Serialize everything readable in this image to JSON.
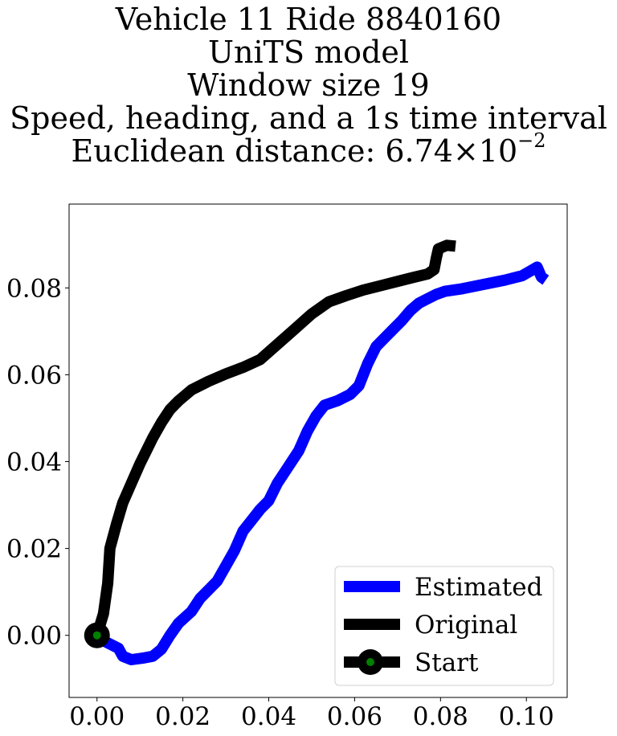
{
  "chart_data": {
    "type": "line",
    "title_lines": [
      "Vehicle 11 Ride 8840160",
      "UniTS model",
      "Window size 19",
      "Speed, heading, and a 1s time interval"
    ],
    "distance_label": "Euclidean distance: 6.74",
    "distance_times": "×",
    "distance_base": "10",
    "distance_exp": "−2",
    "xlim": [
      -0.0065,
      0.1095
    ],
    "ylim": [
      -0.0143,
      0.0993
    ],
    "x_ticks": [
      0.0,
      0.02,
      0.04,
      0.06,
      0.08,
      0.1
    ],
    "x_tick_labels": [
      "0.00",
      "0.02",
      "0.04",
      "0.06",
      "0.08",
      "0.10"
    ],
    "y_ticks": [
      0.0,
      0.02,
      0.04,
      0.06,
      0.08
    ],
    "y_tick_labels": [
      "0.00",
      "0.02",
      "0.04",
      "0.06",
      "0.08"
    ],
    "grid": false,
    "legend": {
      "placement": "lower-right",
      "entries": [
        "Estimated",
        "Original",
        "Start"
      ]
    },
    "series": [
      {
        "name": "Estimated",
        "color": "#0000ff",
        "points": [
          [
            0.0,
            0.0
          ],
          [
            0.002,
            -0.0015
          ],
          [
            0.005,
            -0.003
          ],
          [
            0.006,
            -0.0048
          ],
          [
            0.008,
            -0.0056
          ],
          [
            0.011,
            -0.0052
          ],
          [
            0.013,
            -0.0048
          ],
          [
            0.015,
            -0.0032
          ],
          [
            0.017,
            0.0
          ],
          [
            0.019,
            0.0028
          ],
          [
            0.022,
            0.0055
          ],
          [
            0.024,
            0.0085
          ],
          [
            0.026,
            0.0105
          ],
          [
            0.028,
            0.0125
          ],
          [
            0.03,
            0.016
          ],
          [
            0.032,
            0.0195
          ],
          [
            0.034,
            0.024
          ],
          [
            0.036,
            0.0265
          ],
          [
            0.038,
            0.029
          ],
          [
            0.04,
            0.031
          ],
          [
            0.042,
            0.035
          ],
          [
            0.044,
            0.038
          ],
          [
            0.047,
            0.0425
          ],
          [
            0.049,
            0.047
          ],
          [
            0.051,
            0.0505
          ],
          [
            0.053,
            0.053
          ],
          [
            0.056,
            0.054
          ],
          [
            0.059,
            0.0555
          ],
          [
            0.061,
            0.0575
          ],
          [
            0.063,
            0.0625
          ],
          [
            0.065,
            0.0665
          ],
          [
            0.067,
            0.0685
          ],
          [
            0.069,
            0.0705
          ],
          [
            0.071,
            0.0725
          ],
          [
            0.073,
            0.0748
          ],
          [
            0.075,
            0.0765
          ],
          [
            0.077,
            0.0775
          ],
          [
            0.079,
            0.0785
          ],
          [
            0.081,
            0.0792
          ],
          [
            0.085,
            0.0798
          ],
          [
            0.09,
            0.0808
          ],
          [
            0.095,
            0.0818
          ],
          [
            0.099,
            0.0828
          ],
          [
            0.1015,
            0.0842
          ],
          [
            0.1025,
            0.0848
          ],
          [
            0.1035,
            0.0825
          ],
          [
            0.1045,
            0.0818
          ]
        ]
      },
      {
        "name": "Original",
        "color": "#000000",
        "points": [
          [
            0.0,
            0.0
          ],
          [
            0.0015,
            0.005
          ],
          [
            0.0025,
            0.012
          ],
          [
            0.003,
            0.02
          ],
          [
            0.0045,
            0.0255
          ],
          [
            0.006,
            0.0305
          ],
          [
            0.008,
            0.035
          ],
          [
            0.01,
            0.0395
          ],
          [
            0.0115,
            0.0425
          ],
          [
            0.013,
            0.0455
          ],
          [
            0.015,
            0.049
          ],
          [
            0.017,
            0.052
          ],
          [
            0.019,
            0.054
          ],
          [
            0.022,
            0.0565
          ],
          [
            0.026,
            0.0585
          ],
          [
            0.03,
            0.0602
          ],
          [
            0.034,
            0.0617
          ],
          [
            0.038,
            0.0635
          ],
          [
            0.042,
            0.067
          ],
          [
            0.046,
            0.0705
          ],
          [
            0.05,
            0.074
          ],
          [
            0.054,
            0.0768
          ],
          [
            0.058,
            0.0782
          ],
          [
            0.062,
            0.0795
          ],
          [
            0.066,
            0.0805
          ],
          [
            0.07,
            0.0815
          ],
          [
            0.074,
            0.0825
          ],
          [
            0.077,
            0.0832
          ],
          [
            0.0785,
            0.0842
          ],
          [
            0.079,
            0.0868
          ],
          [
            0.0795,
            0.089
          ],
          [
            0.0815,
            0.0898
          ],
          [
            0.0835,
            0.0896
          ]
        ]
      }
    ],
    "start": {
      "x": 0.0,
      "y": 0.0,
      "outer_color": "#000000",
      "inner_color": "#008000"
    }
  }
}
